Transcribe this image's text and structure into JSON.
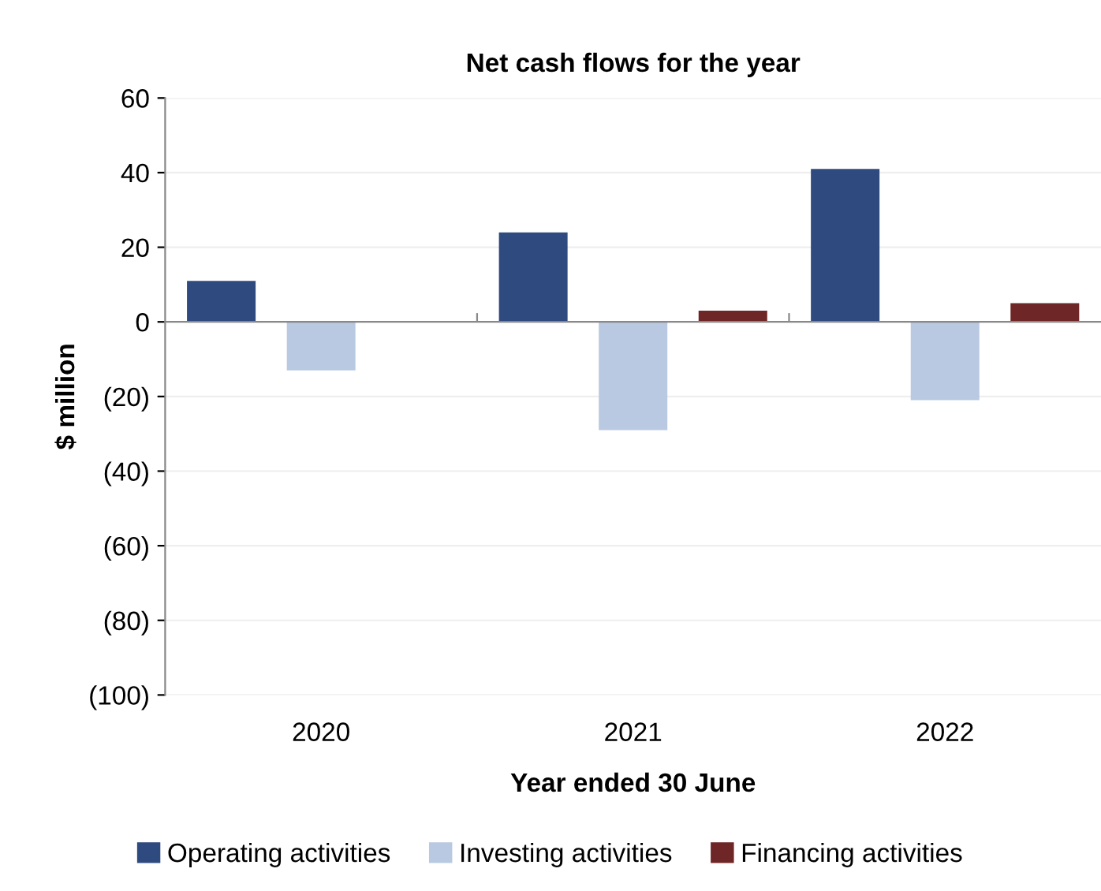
{
  "chart_data": {
    "type": "bar",
    "title": "Net cash flows for the year",
    "xlabel": "Year ended 30 June",
    "ylabel": "$ million",
    "categories": [
      "2020",
      "2021",
      "2022"
    ],
    "series": [
      {
        "name": "Operating activities",
        "color": "#2e4a7e",
        "values": [
          11,
          24,
          41
        ]
      },
      {
        "name": "Investing activities",
        "color": "#b9c9e2",
        "values": [
          -13,
          -29,
          -21
        ]
      },
      {
        "name": "Financing activities",
        "color": "#6e2626",
        "values": [
          null,
          3,
          5
        ]
      }
    ],
    "ylim": [
      -100,
      60
    ],
    "yticks": [
      {
        "value": -100,
        "label": "(100)"
      },
      {
        "value": -80,
        "label": "(80)"
      },
      {
        "value": -60,
        "label": "(60)"
      },
      {
        "value": -40,
        "label": "(40)"
      },
      {
        "value": -20,
        "label": "(20)"
      },
      0,
      20,
      40,
      60
    ],
    "grid": "y",
    "legend": "bottom"
  }
}
